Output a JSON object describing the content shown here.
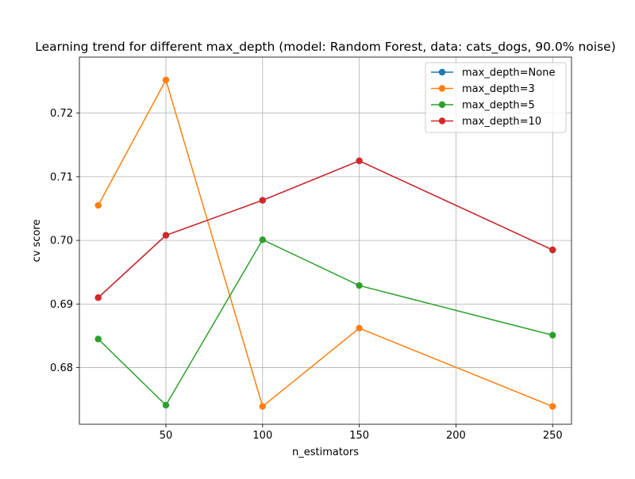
{
  "chart_data": {
    "type": "line",
    "title": "Learning trend for different max_depth (model: Random Forest, data: cats_dogs, 90.0% noise)",
    "xlabel": "n_estimators",
    "ylabel": "cv score",
    "x": [
      15,
      50,
      100,
      150,
      250
    ],
    "xlim": [
      5.25,
      259.75
    ],
    "ylim": [
      0.6711,
      0.7288
    ],
    "xticks": [
      50,
      100,
      150,
      200,
      250
    ],
    "xtick_labels": [
      "50",
      "100",
      "150",
      "200",
      "250"
    ],
    "yticks": [
      0.68,
      0.69,
      0.7,
      0.71,
      0.72
    ],
    "ytick_labels": [
      "0.68",
      "0.69",
      "0.70",
      "0.71",
      "0.72"
    ],
    "grid": true,
    "legend_position": "top-right",
    "series": [
      {
        "name": "max_depth=None",
        "color": "#1f77b4",
        "values": [
          0.691,
          0.7008,
          0.7063,
          0.7125,
          0.6985
        ]
      },
      {
        "name": "max_depth=3",
        "color": "#ff7f0e",
        "values": [
          0.7055,
          0.7252,
          0.6739,
          0.6862,
          0.6739
        ]
      },
      {
        "name": "max_depth=5",
        "color": "#2ca02c",
        "values": [
          0.6845,
          0.6741,
          0.7001,
          0.6929,
          0.6851
        ]
      },
      {
        "name": "max_depth=10",
        "color": "#d62728",
        "values": [
          0.691,
          0.7008,
          0.7063,
          0.7125,
          0.6985
        ]
      }
    ]
  }
}
